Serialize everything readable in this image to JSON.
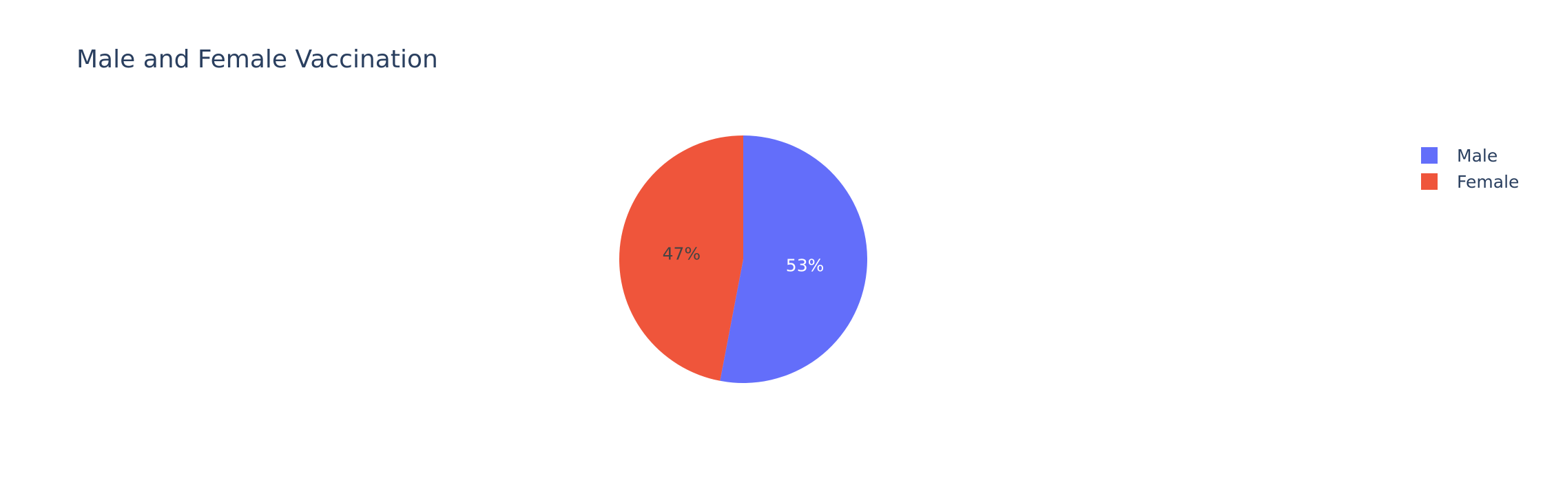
{
  "chart_data": {
    "type": "pie",
    "title": "Male and Female Vaccination",
    "labels": [
      "Male",
      "Female"
    ],
    "values": [
      53,
      47
    ],
    "value_labels": [
      "53%",
      "47%"
    ],
    "colors": [
      "#636efa",
      "#ef553b"
    ],
    "slice_label_colors": [
      "#ffffff",
      "#444444"
    ],
    "direction": "clockwise",
    "start": "top",
    "legend_position": "top-right"
  }
}
